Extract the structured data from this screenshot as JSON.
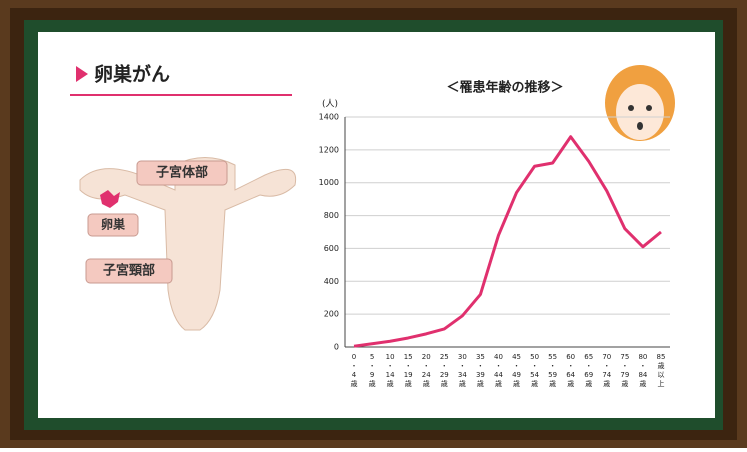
{
  "header": {
    "title": "卵巣がん"
  },
  "diagram": {
    "labels": [
      "子宮体部",
      "卵巣",
      "子宮頸部"
    ]
  },
  "chart_data": {
    "type": "line",
    "title": "＜罹患年齢の推移＞",
    "y_label": "(人)",
    "categories": [
      "0・4歳",
      "5・9歳",
      "10・14歳",
      "15・19歳",
      "20・24歳",
      "25・29歳",
      "30・34歳",
      "35・39歳",
      "40・44歳",
      "45・49歳",
      "50・54歳",
      "55・59歳",
      "60・64歳",
      "65・69歳",
      "70・74歳",
      "75・79歳",
      "80・84歳",
      "85歳以上"
    ],
    "values": [
      5,
      20,
      35,
      55,
      80,
      110,
      190,
      320,
      680,
      940,
      1100,
      1120,
      1280,
      1130,
      950,
      720,
      610,
      700
    ],
    "color": "#e0306e",
    "ylim": [
      0,
      1400
    ],
    "yticks": [
      0,
      200,
      400,
      600,
      800,
      1000,
      1200,
      1400
    ],
    "grid": true
  }
}
